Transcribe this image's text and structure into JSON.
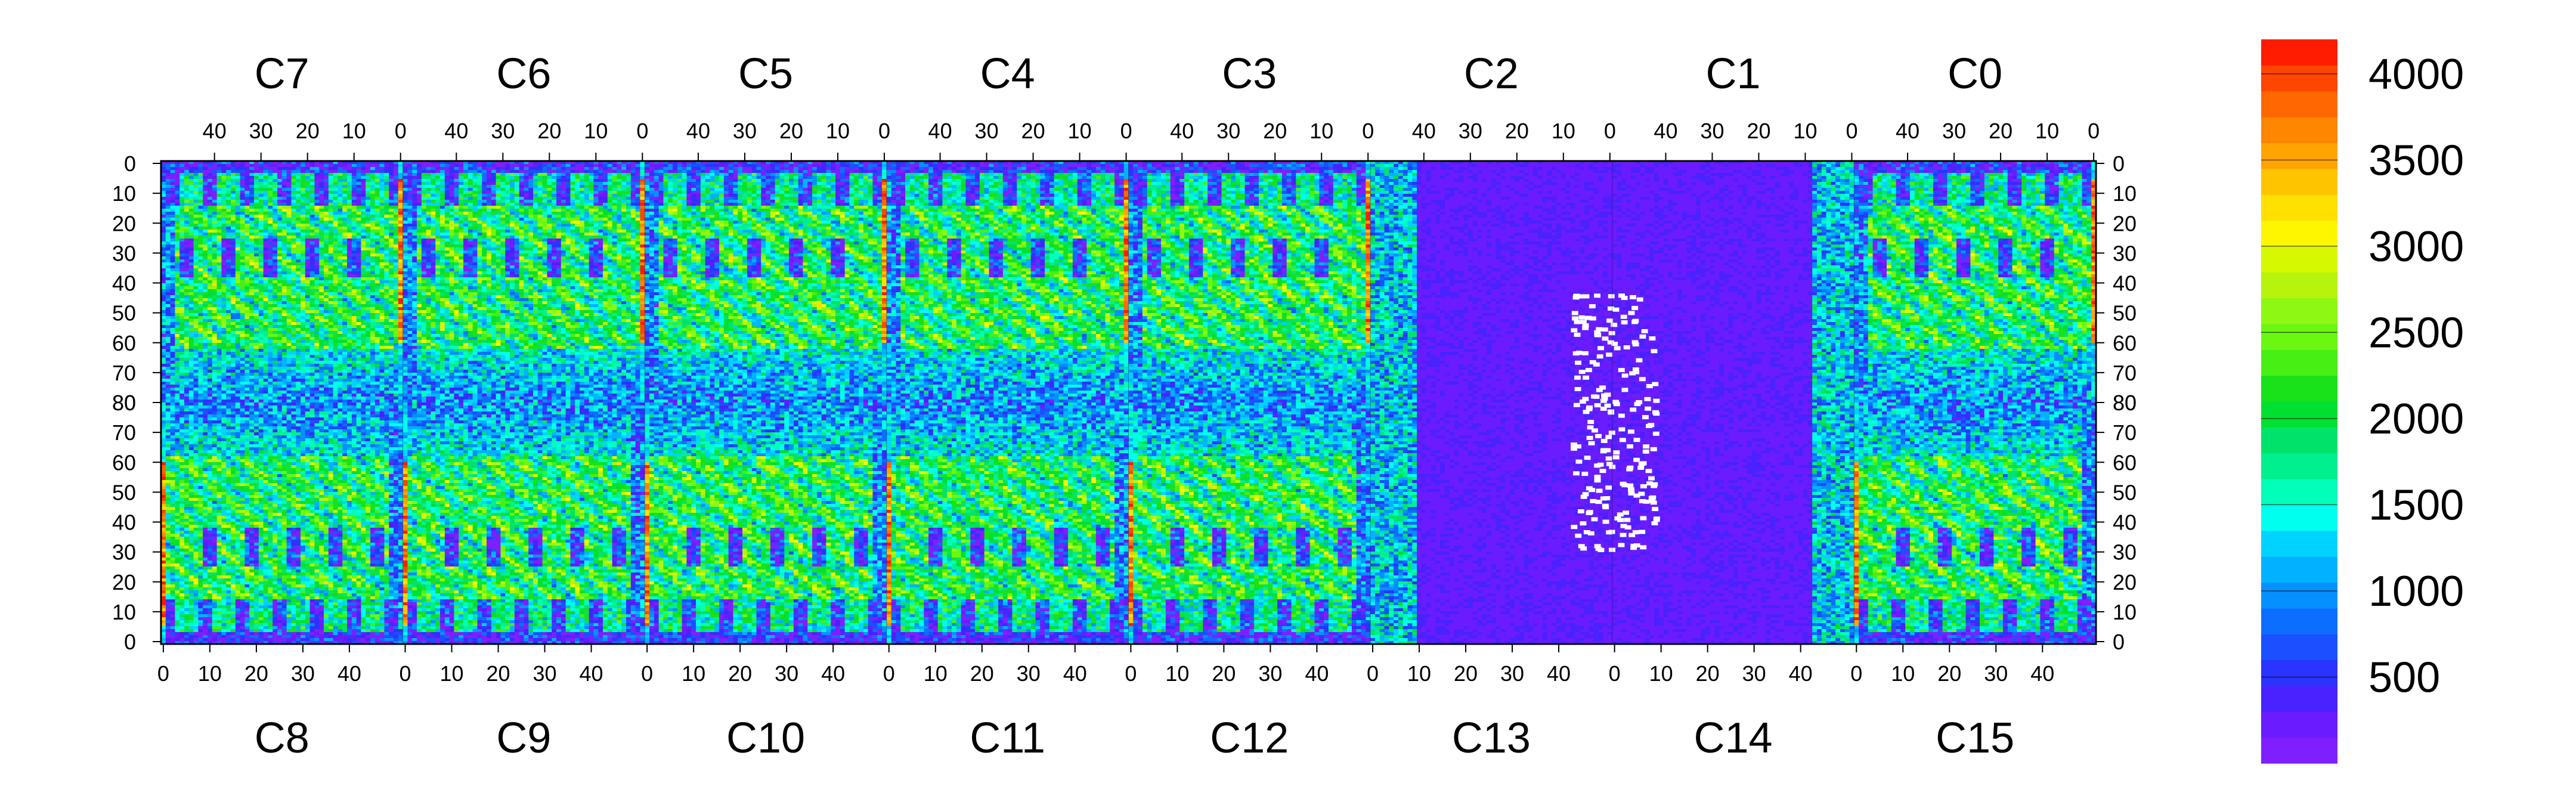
{
  "chart_data": {
    "type": "heatmap",
    "title": "",
    "xlabel": "",
    "ylabel": "",
    "top_chips": [
      "C7",
      "C6",
      "C5",
      "C4",
      "C3",
      "C2",
      "C1",
      "C0"
    ],
    "bottom_chips": [
      "C8",
      "C9",
      "C10",
      "C11",
      "C12",
      "C13",
      "C14",
      "C15"
    ],
    "chip_columns": 52,
    "top_x_ticks": [
      "40",
      "30",
      "20",
      "10",
      "0"
    ],
    "bottom_x_ticks": [
      "0",
      "10",
      "20",
      "30",
      "40"
    ],
    "top_x_tick_values": [
      40,
      30,
      20,
      10,
      0
    ],
    "bottom_x_tick_values": [
      0,
      10,
      20,
      30,
      40
    ],
    "top_y_ticks": [
      "0",
      "10",
      "20",
      "30",
      "40",
      "50",
      "60",
      "70",
      "80"
    ],
    "bottom_y_ticks": [
      "80",
      "70",
      "60",
      "50",
      "40",
      "30",
      "20",
      "10",
      "0"
    ],
    "y_tick_values": [
      0,
      10,
      20,
      30,
      40,
      50,
      60,
      70,
      80
    ],
    "y_range": [
      0,
      80
    ],
    "colorbar": {
      "range": [
        0,
        4200
      ],
      "ticks": [
        "500",
        "1000",
        "1500",
        "2000",
        "2500",
        "3000",
        "3500",
        "4000"
      ],
      "tick_values": [
        500,
        1000,
        1500,
        2000,
        2500,
        3000,
        3500,
        4000
      ],
      "colors": [
        "#7f1fff",
        "#6b1bff",
        "#4a21ff",
        "#2a34ff",
        "#1a50ff",
        "#0c6eff",
        "#0590ff",
        "#00b2ff",
        "#00d3ff",
        "#00ffee",
        "#00ffb8",
        "#00f090",
        "#00e36a",
        "#00e030",
        "#19e11a",
        "#48ef15",
        "#6bf711",
        "#8ef713",
        "#b6f40d",
        "#d6f800",
        "#fcf600",
        "#ffe000",
        "#ffc400",
        "#ffa400",
        "#ff8600",
        "#ff6800",
        "#ff4600",
        "#ff1c00"
      ]
    },
    "grid": false,
    "legend": "colorbar-right"
  }
}
